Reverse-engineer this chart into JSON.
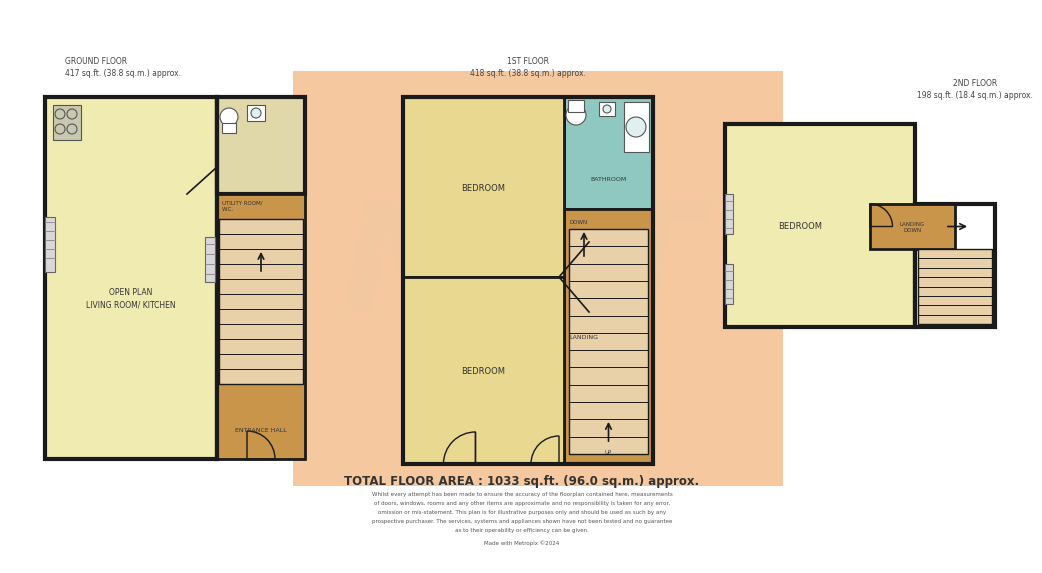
{
  "bg": "#ffffff",
  "salmon": "#f5c8a0",
  "yellow_light": "#f0ebb0",
  "yellow_room": "#e8d890",
  "tan_hall": "#c8954a",
  "bathroom_teal": "#8ec8c0",
  "wall": "#1a1a1a",
  "stair_fill": "#e8d0a8",
  "utility_fill": "#e0d8a8",
  "grey_light": "#c8c8c8",
  "white": "#ffffff",
  "title_ground": "GROUND FLOOR\n417 sq.ft. (38.8 sq.m.) approx.",
  "title_1st": "1ST FLOOR\n418 sq.ft. (38.8 sq.m.) approx.",
  "title_2nd": "2ND FLOOR\n198 sq.ft. (18.4 sq.m.) approx.",
  "total_area": "TOTAL FLOOR AREA : 1033 sq.ft. (96.0 sq.m.) approx.",
  "disclaimer_lines": [
    "Whilst every attempt has been made to ensure the accuracy of the floorplan contained here, measurements",
    "of doors, windows, rooms and any other items are approximate and no responsibility is taken for any error,",
    "omission or mis-statement. This plan is for illustrative purposes only and should be used as such by any",
    "prospective purchaser. The services, systems and appliances shown have not been tested and no guarantee",
    "as to their operability or efficiency can be given."
  ],
  "made_with": "Made with Metropix ©2024",
  "watermark": "NOT"
}
